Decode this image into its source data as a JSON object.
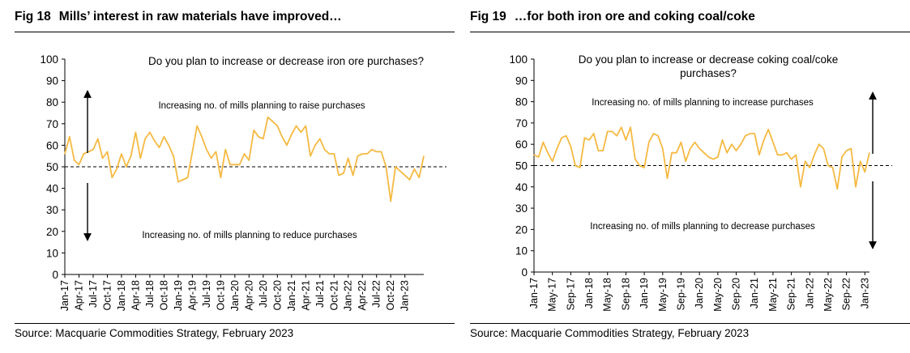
{
  "source": "Source: Macquarie Commodities Strategy, February 2023",
  "colors": {
    "line": "#F5B942",
    "axis": "#000000",
    "reference": "#000000"
  },
  "chart_data": [
    {
      "type": "line",
      "fig_number": "Fig 18",
      "title": "Mills’ interest in raw materials have improved…",
      "question": "Do you plan to increase or decrease iron ore purchases?",
      "annotation_up": "Increasing no. of mills planning to raise purchases",
      "annotation_down": "Increasing no. of mills planning to reduce purchases",
      "ylim": [
        0,
        100
      ],
      "yticks": [
        0,
        10,
        20,
        30,
        40,
        50,
        60,
        70,
        80,
        90,
        100
      ],
      "reference_line": 50,
      "tick_labels": [
        "Jan-17",
        "Apr-17",
        "Jul-17",
        "Oct-17",
        "Jan-18",
        "Apr-18",
        "Jul-18",
        "Oct-18",
        "Jan-19",
        "Apr-19",
        "Jul-19",
        "Oct-19",
        "Jan-20",
        "Apr-20",
        "Jul-20",
        "Oct-20",
        "Jan-21",
        "Apr-21",
        "Jul-21",
        "Oct-21",
        "Jan-22",
        "Apr-22",
        "Jul-22",
        "Oct-22",
        "Jan-23"
      ],
      "x_start": "Jan-17",
      "series": [
        {
          "name": "Iron ore purchase intention",
          "values": [
            56,
            64,
            53,
            51,
            56,
            57,
            58,
            63,
            54,
            57,
            45,
            49,
            56,
            50,
            55,
            66,
            54,
            63,
            66,
            62,
            59,
            64,
            60,
            55,
            43,
            44,
            45,
            57,
            69,
            64,
            58,
            54,
            57,
            45,
            58,
            51,
            51,
            51,
            56,
            53,
            67,
            64,
            63,
            73,
            71,
            69,
            64,
            60,
            65,
            69,
            66,
            69,
            55,
            60,
            63,
            58,
            56,
            56,
            46,
            47,
            54,
            46,
            55,
            56,
            56,
            58,
            57,
            57,
            50,
            34,
            50,
            48,
            46,
            44,
            49,
            45,
            55
          ]
        }
      ]
    },
    {
      "type": "line",
      "fig_number": "Fig 19",
      "title": "…for both iron ore and coking coal/coke",
      "question": "Do you plan to increase or decrease coking coal/coke purchases?",
      "annotation_up": "Increasing no. of mills planning to increase purchases",
      "annotation_down": "Increasing no. of mills planning to decrease purchases",
      "ylim": [
        0,
        100
      ],
      "yticks": [
        0,
        10,
        20,
        30,
        40,
        50,
        60,
        70,
        80,
        90,
        100
      ],
      "reference_line": 50,
      "tick_labels": [
        "Jan-17",
        "May-17",
        "Sep-17",
        "Jan-18",
        "May-18",
        "Sep-18",
        "Jan-19",
        "May-19",
        "Sep-19",
        "Jan-20",
        "May-20",
        "Sep-20",
        "Jan-21",
        "May-21",
        "Sep-21",
        "Jan-22",
        "May-22",
        "Sep-22",
        "Jan-23"
      ],
      "x_start": "Jan-17",
      "series": [
        {
          "name": "Coking coal/coke purchase intention",
          "values": [
            55,
            54,
            61,
            56,
            52,
            58,
            63,
            64,
            59,
            50,
            49,
            63,
            62,
            65,
            57,
            57,
            66,
            66,
            64,
            68,
            62,
            68,
            53,
            50,
            49,
            61,
            65,
            64,
            58,
            44,
            56,
            56,
            61,
            52,
            58,
            61,
            58,
            56,
            54,
            53,
            54,
            62,
            56,
            60,
            57,
            60,
            64,
            65,
            65,
            55,
            62,
            67,
            61,
            55,
            55,
            56,
            53,
            55,
            40,
            52,
            49,
            55,
            60,
            58,
            50,
            49,
            39,
            54,
            57,
            58,
            40,
            52,
            47,
            56
          ]
        }
      ]
    }
  ]
}
